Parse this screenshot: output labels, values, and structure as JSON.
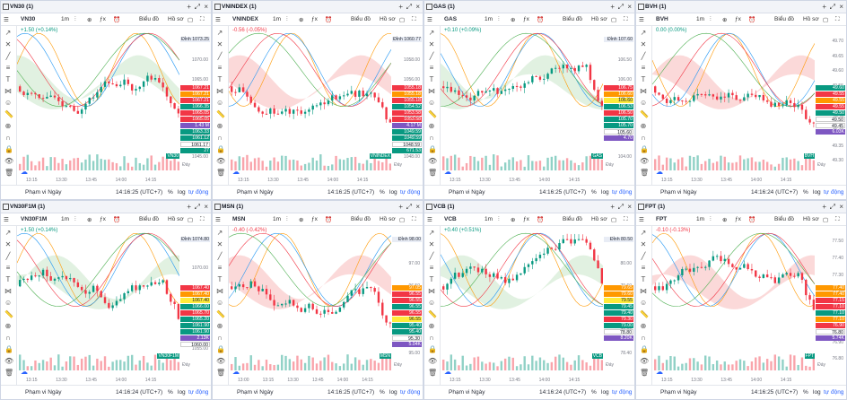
{
  "panels": [
    {
      "tab": "VN30 (1)",
      "symbol": "VN30",
      "interval": "1m",
      "chart_type": "Biểu đồ",
      "profile": "Hồ sơ",
      "change": "+1.50 (+0.14%)",
      "change_dir": "up",
      "top_label": "Đỉnh 1073.25",
      "right_axis": [
        "1075.00",
        "1070.00",
        "1065.00",
        "1060.00",
        "1055.00",
        "1050.00",
        "1045.00"
      ],
      "price_labels": [
        {
          "t": "1067.21",
          "c": "#f23645"
        },
        {
          "t": "1067.21",
          "c": "#ff9800"
        },
        {
          "t": "1067.21",
          "c": "#f23645"
        },
        {
          "t": "1066.35",
          "c": "#089981"
        },
        {
          "t": "1065.05",
          "c": "#f23645"
        },
        {
          "t": "1065.05",
          "c": "#f23645"
        },
        {
          "t": "1.43 M",
          "c": "#7e57c2"
        },
        {
          "t": "1063.33",
          "c": "#089981"
        },
        {
          "t": "1061.12",
          "c": "#089981"
        },
        {
          "t": "1061.17",
          "c": "#ffffff"
        },
        {
          "t": "27",
          "c": "#089981"
        }
      ],
      "tag": "VN30",
      "bottom_label": "Đáy",
      "times": [
        "13:15",
        "13:30",
        "13:45",
        "14:00",
        "14:15"
      ],
      "range": "Phạm vi Ngày",
      "time": "14:16:25 (UTC+7)",
      "pct": "%",
      "log": "log",
      "auto": "tự động",
      "seed": 11
    },
    {
      "tab": "VNINDEX (1)",
      "symbol": "VNINDEX",
      "interval": "1m",
      "chart_type": "Biểu đồ",
      "profile": "Hồ sơ",
      "change": "-0.56 (-0.05%)",
      "change_dir": "down",
      "top_label": "Đỉnh 1060.77",
      "right_axis": [
        "1060.00",
        "1058.00",
        "1056.00",
        "1054.00",
        "1052.00",
        "1050.00",
        "1048.00"
      ],
      "price_labels": [
        {
          "t": "1055.18",
          "c": "#f23645"
        },
        {
          "t": "1055.18",
          "c": "#ff9800"
        },
        {
          "t": "1055.18",
          "c": "#f23645"
        },
        {
          "t": "1054.52",
          "c": "#089981"
        },
        {
          "t": "1053.58",
          "c": "#f23645"
        },
        {
          "t": "1053.58",
          "c": "#f23645"
        },
        {
          "t": "4.17 M",
          "c": "#7e57c2"
        },
        {
          "t": "1049.59",
          "c": "#089981"
        },
        {
          "t": "1049.59",
          "c": "#089981"
        },
        {
          "t": "1048.59",
          "c": "#ffffff"
        },
        {
          "t": "671.53",
          "c": "#089981"
        }
      ],
      "tag": "VNINDEX",
      "bottom_label": "Đáy",
      "times": [
        "13:15",
        "13:30",
        "13:45",
        "14:00",
        "14:15"
      ],
      "range": "Phạm vi Ngày",
      "time": "14:16:25 (UTC+7)",
      "pct": "%",
      "log": "log",
      "auto": "tự động",
      "seed": 23
    },
    {
      "tab": "GAS (1)",
      "symbol": "GAS",
      "interval": "1m",
      "chart_type": "Biểu đồ",
      "profile": "Hồ sơ",
      "change": "+0.10 (+0.09%)",
      "change_dir": "up",
      "top_label": "Đỉnh 107.60",
      "right_axis": [
        "107.00",
        "106.50",
        "106.00",
        "105.50",
        "105.00",
        "104.50",
        "104.00"
      ],
      "price_labels": [
        {
          "t": "106.75",
          "c": "#f23645"
        },
        {
          "t": "106.60",
          "c": "#ff9800"
        },
        {
          "t": "106.60",
          "c": "#ffeb3b"
        },
        {
          "t": "106.53",
          "c": "#089981"
        },
        {
          "t": "106.50",
          "c": "#f23645"
        },
        {
          "t": "105.70",
          "c": "#089981"
        },
        {
          "t": "105.70",
          "c": "#089981"
        },
        {
          "t": "105.60",
          "c": "#ffffff"
        },
        {
          "t": "4.70",
          "c": "#7e57c2"
        }
      ],
      "tag": "GAS",
      "bottom_label": "Đáy",
      "times": [
        "13:15",
        "13:30",
        "13:45",
        "14:00",
        "14:15"
      ],
      "range": "Phạm vi Ngày",
      "time": "14:16:25 (UTC+7)",
      "pct": "%",
      "log": "log",
      "auto": "tự động",
      "seed": 37
    },
    {
      "tab": "BVH (1)",
      "symbol": "BVH",
      "interval": "1m",
      "chart_type": "Biểu đồ",
      "profile": "Hồ sơ",
      "change": "0.00 (0.00%)",
      "change_dir": "up",
      "top_label": "",
      "right_axis": [
        "49.70",
        "49.65",
        "49.60",
        "49.55",
        "49.50",
        "49.45",
        "49.40",
        "49.35",
        "49.30"
      ],
      "price_labels": [
        {
          "t": "49.60",
          "c": "#089981"
        },
        {
          "t": "49.55",
          "c": "#f23645"
        },
        {
          "t": "49.55",
          "c": "#ff9800"
        },
        {
          "t": "49.55",
          "c": "#f23645"
        },
        {
          "t": "49.50",
          "c": "#089981"
        },
        {
          "t": "49.50",
          "c": "#ffffff"
        },
        {
          "t": "49.45",
          "c": "#ffffff"
        },
        {
          "t": "6.03K",
          "c": "#7e57c2"
        }
      ],
      "tag": "BVH",
      "bottom_label": "Đáy",
      "times": [
        "13:15",
        "13:30",
        "13:45",
        "14:00",
        "14:15"
      ],
      "range": "Phạm vi Ngày",
      "time": "14:16:24 (UTC+7)",
      "pct": "%",
      "log": "log",
      "auto": "tự động",
      "seed": 41
    },
    {
      "tab": "VN30F1M (1)",
      "symbol": "VN30F1M",
      "interval": "1m",
      "chart_type": "Biểu đồ",
      "profile": "Hồ sơ",
      "change": "+1.50 (+0.14%)",
      "change_dir": "up",
      "top_label": "Đỉnh 1074.80",
      "right_axis": [
        "1075.00",
        "1070.00",
        "1065.00",
        "1060.00",
        "1055.00"
      ],
      "price_labels": [
        {
          "t": "1067.40",
          "c": "#f23645"
        },
        {
          "t": "1067.40",
          "c": "#ff9800"
        },
        {
          "t": "1067.40",
          "c": "#ffeb3b"
        },
        {
          "t": "1066.00",
          "c": "#089981"
        },
        {
          "t": "1065.70",
          "c": "#f23645"
        },
        {
          "t": "1065.20",
          "c": "#089981"
        },
        {
          "t": "1061.90",
          "c": "#089981"
        },
        {
          "t": "1061.90",
          "c": "#089981"
        },
        {
          "t": "2.13K",
          "c": "#7e57c2"
        },
        {
          "t": "1060.00",
          "c": "#ffffff"
        }
      ],
      "tag": "VN30F1M",
      "bottom_label": "Đáy",
      "times": [
        "13:15",
        "13:30",
        "13:45",
        "14:00",
        "14:15"
      ],
      "range": "Phạm vi Ngày",
      "time": "14:16:24 (UTC+7)",
      "pct": "%",
      "log": "log",
      "auto": "tự động",
      "seed": 53
    },
    {
      "tab": "MSN (1)",
      "symbol": "MSN",
      "interval": "1m",
      "chart_type": "Biểu đồ",
      "profile": "Hồ sơ",
      "change": "-0.40 (-0.42%)",
      "change_dir": "down",
      "top_label": "Đỉnh 98.00",
      "right_axis": [
        "97.50",
        "97.00",
        "96.50",
        "96.00",
        "95.50",
        "95.00"
      ],
      "price_labels": [
        {
          "t": "97.05",
          "c": "#ff9800"
        },
        {
          "t": "96.55",
          "c": "#f23645"
        },
        {
          "t": "96.55",
          "c": "#f23645"
        },
        {
          "t": "96.55",
          "c": "#089981"
        },
        {
          "t": "96.55",
          "c": "#f23645"
        },
        {
          "t": "96.55",
          "c": "#ffeb3b"
        },
        {
          "t": "95.40",
          "c": "#089981"
        },
        {
          "t": "95.40",
          "c": "#089981"
        },
        {
          "t": "95.30",
          "c": "#ffffff"
        },
        {
          "t": "5.04K",
          "c": "#7e57c2"
        }
      ],
      "tag": "MSN",
      "bottom_label": "Đáy",
      "times": [
        "13:00",
        "13:15",
        "13:30",
        "13:45",
        "14:00",
        "14:15"
      ],
      "range": "Phạm vi Ngày",
      "time": "14:16:25 (UTC+7)",
      "pct": "%",
      "log": "log",
      "auto": "tự động",
      "seed": 67
    },
    {
      "tab": "VCB (1)",
      "symbol": "VCB",
      "interval": "1m",
      "chart_type": "Biểu đồ",
      "profile": "Hồ sơ",
      "change": "+0.40 (+0.51%)",
      "change_dir": "up",
      "top_label": "Đỉnh 80.50",
      "right_axis": [
        "80.40",
        "80.00",
        "79.60",
        "79.20",
        "78.80",
        "78.40"
      ],
      "price_labels": [
        {
          "t": "79.65",
          "c": "#ff9800"
        },
        {
          "t": "79.60",
          "c": "#ff9800"
        },
        {
          "t": "79.55",
          "c": "#ffeb3b"
        },
        {
          "t": "79.45",
          "c": "#089981"
        },
        {
          "t": "79.40",
          "c": "#089981"
        },
        {
          "t": "79.30",
          "c": "#f23645"
        },
        {
          "t": "79.00",
          "c": "#089981"
        },
        {
          "t": "78.80",
          "c": "#ffffff"
        },
        {
          "t": "8.20K",
          "c": "#7e57c2"
        }
      ],
      "tag": "VCB",
      "bottom_label": "Đáy",
      "times": [
        "13:15",
        "13:30",
        "13:45",
        "14:00",
        "14:15"
      ],
      "range": "Phạm vi Ngày",
      "time": "14:16:24 (UTC+7)",
      "pct": "%",
      "log": "log",
      "auto": "tự động",
      "seed": 79
    },
    {
      "tab": "FPT (1)",
      "symbol": "FPT",
      "interval": "1m",
      "chart_type": "Biểu đồ",
      "profile": "Hồ sơ",
      "change": "-0.10 (-0.13%)",
      "change_dir": "down",
      "top_label": "",
      "right_axis": [
        "77.50",
        "77.40",
        "77.30",
        "77.20",
        "77.10",
        "77.00",
        "76.90",
        "76.80"
      ],
      "price_labels": [
        {
          "t": "77.40",
          "c": "#ff9800"
        },
        {
          "t": "77.40",
          "c": "#ff9800"
        },
        {
          "t": "77.15",
          "c": "#f23645"
        },
        {
          "t": "77.10",
          "c": "#f23645"
        },
        {
          "t": "77.10",
          "c": "#089981"
        },
        {
          "t": "77.10",
          "c": "#ff9800"
        },
        {
          "t": "76.90",
          "c": "#f23645"
        },
        {
          "t": "76.80",
          "c": "#ffffff"
        },
        {
          "t": "5.74K",
          "c": "#7e57c2"
        }
      ],
      "tag": "FPT",
      "bottom_label": "Đáy",
      "times": [
        "13:15",
        "13:30",
        "13:45",
        "14:00",
        "14:15"
      ],
      "range": "Phạm vi Ngày",
      "time": "14:16:25 (UTC+7)",
      "pct": "%",
      "log": "log",
      "auto": "tự động",
      "seed": 97
    }
  ],
  "colors": {
    "up": "#089981",
    "down": "#f23645",
    "accent": "#2962ff"
  }
}
